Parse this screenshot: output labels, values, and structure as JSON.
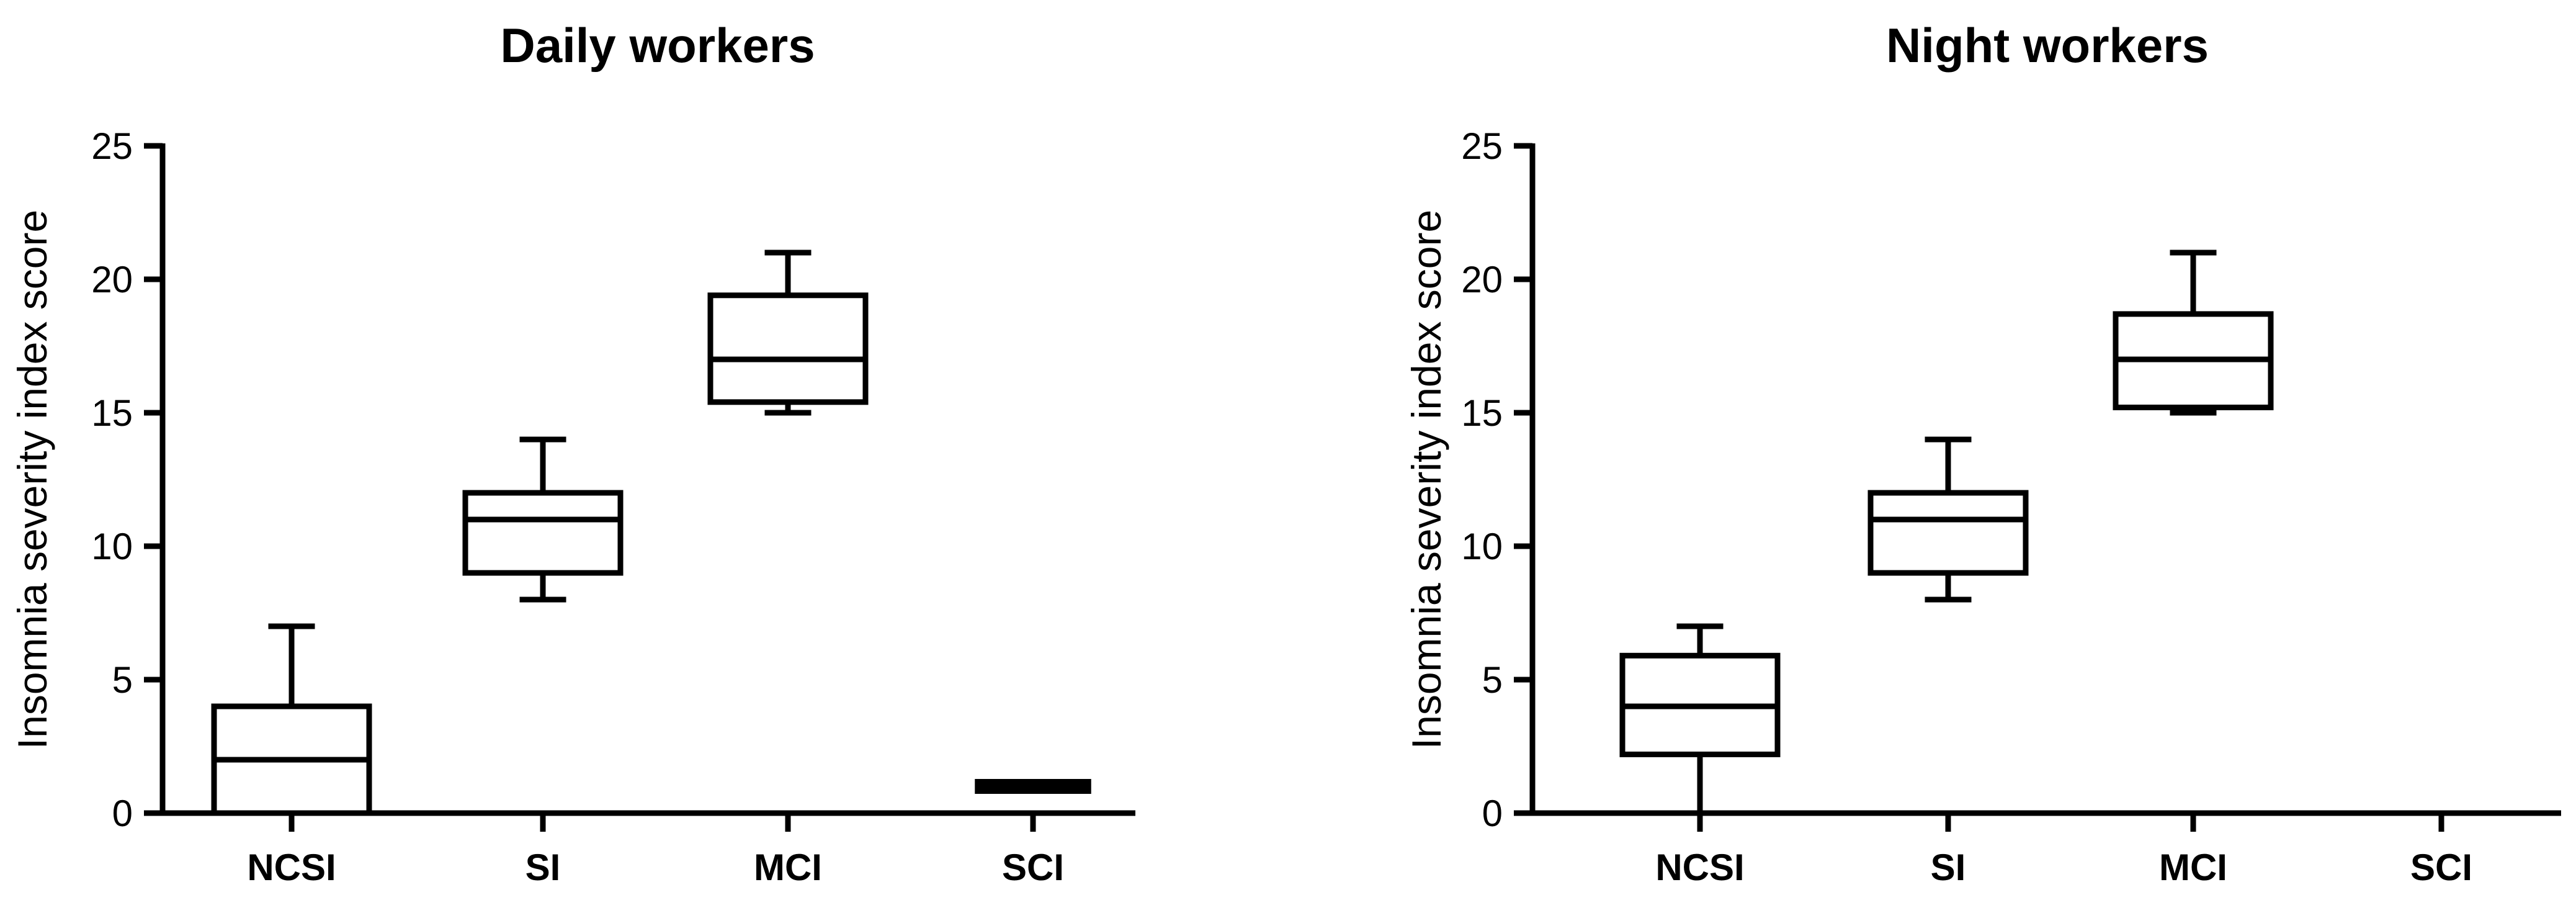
{
  "chart_data": [
    {
      "type": "box",
      "title": "Daily workers",
      "ylabel": "Insomnia severity index score",
      "xlabel": "",
      "ylim": [
        0,
        25
      ],
      "yticks": [
        0,
        5,
        10,
        15,
        20,
        25
      ],
      "categories": [
        "NCSI",
        "SI",
        "MCI",
        "SCI"
      ],
      "boxes": [
        {
          "category": "NCSI",
          "min": 0,
          "q1": 0,
          "median": 2,
          "q3": 4,
          "max": 7
        },
        {
          "category": "SI",
          "min": 8,
          "q1": 9,
          "median": 11,
          "q3": 12,
          "max": 14
        },
        {
          "category": "MCI",
          "min": 15,
          "q1": 15.4,
          "median": 17,
          "q3": 19.4,
          "max": 21
        },
        {
          "category": "SCI",
          "min": 1,
          "q1": 1,
          "median": 1,
          "q3": 1,
          "max": 1
        }
      ],
      "grid": false
    },
    {
      "type": "box",
      "title": "Night workers",
      "ylabel": "Insomnia severity index score",
      "xlabel": "",
      "ylim": [
        0,
        25
      ],
      "yticks": [
        0,
        5,
        10,
        15,
        20,
        25
      ],
      "categories": [
        "NCSI",
        "SI",
        "MCI",
        "SCI"
      ],
      "boxes": [
        {
          "category": "NCSI",
          "min": 0,
          "q1": 2.2,
          "median": 4,
          "q3": 5.9,
          "max": 7
        },
        {
          "category": "SI",
          "min": 8,
          "q1": 9,
          "median": 11,
          "q3": 12,
          "max": 14
        },
        {
          "category": "MCI",
          "min": 15,
          "q1": 15.2,
          "median": 17,
          "q3": 18.7,
          "max": 21
        }
      ],
      "grid": false
    }
  ]
}
